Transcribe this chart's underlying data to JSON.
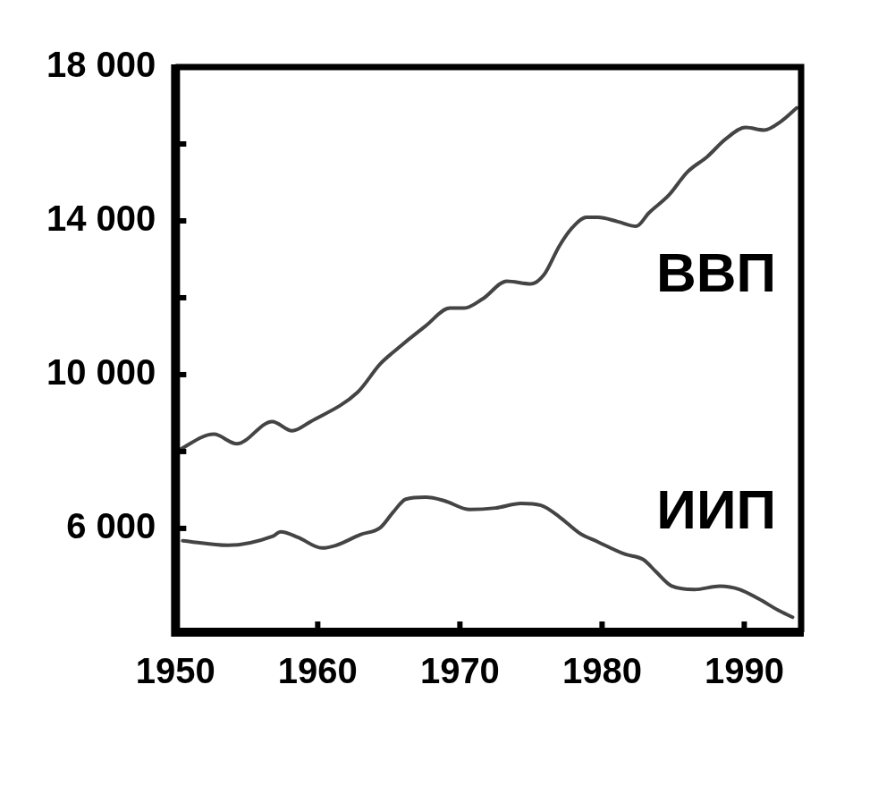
{
  "chart_data": {
    "type": "line",
    "xlim": [
      1950,
      1994
    ],
    "xticks": [
      1950,
      1960,
      1970,
      1980,
      1990
    ],
    "ylim": [
      3300,
      18000
    ],
    "yticks": [
      {
        "value": 6000,
        "label": "6 000"
      },
      {
        "value": 8000,
        "label": null
      },
      {
        "value": 10000,
        "label": "10 000"
      },
      {
        "value": 12000,
        "label": null
      },
      {
        "value": 14000,
        "label": "14 000"
      },
      {
        "value": 16000,
        "label": null
      },
      {
        "value": 18000,
        "label": "18 000"
      }
    ],
    "grid": false,
    "legend": false,
    "marker": "none",
    "line_style": "solid",
    "series": [
      {
        "name": "ВВП",
        "color": "#444444",
        "x": [
          1950,
          1952.7,
          1954.3,
          1956.8,
          1958.2,
          1959.5,
          1962.8,
          1964.4,
          1965.3,
          1967.6,
          1969.3,
          1970.3,
          1971.6,
          1973.3,
          1975,
          1975.9,
          1977,
          1977.9,
          1978.9,
          1979.7,
          1981.1,
          1982.4,
          1983.3,
          1984.7,
          1986,
          1987.4,
          1988.7,
          1990.1,
          1991.4,
          1992.6,
          1993.7
        ],
        "values": [
          7990,
          8450,
          8200,
          8780,
          8540,
          8780,
          9540,
          10280,
          10580,
          11270,
          11730,
          11730,
          11970,
          12430,
          12360,
          12590,
          13350,
          13820,
          14090,
          14090,
          13980,
          13860,
          14210,
          14670,
          15270,
          15670,
          16130,
          16430,
          16360,
          16590,
          16940
        ]
      },
      {
        "name": "ИИП",
        "color": "#444444",
        "x": [
          1950.5,
          1953.7,
          1956.8,
          1957.4,
          1958.6,
          1960.3,
          1961.3,
          1963,
          1964.4,
          1965.3,
          1966.2,
          1967.6,
          1968.9,
          1970.7,
          1972.5,
          1974.3,
          1975.7,
          1977,
          1978.4,
          1979.7,
          1981.6,
          1982.9,
          1983.8,
          1984.9,
          1986.5,
          1988.3,
          1989.7,
          1991,
          1992.4,
          1993.4
        ],
        "values": [
          5680,
          5560,
          5790,
          5910,
          5770,
          5490,
          5560,
          5840,
          6020,
          6420,
          6760,
          6810,
          6720,
          6490,
          6530,
          6650,
          6600,
          6300,
          5880,
          5650,
          5330,
          5190,
          4870,
          4500,
          4410,
          4500,
          4410,
          4170,
          3870,
          3690
        ]
      }
    ]
  }
}
